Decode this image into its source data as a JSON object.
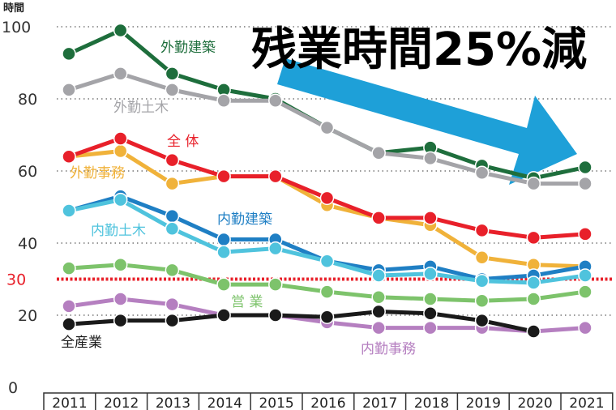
{
  "chart_data": {
    "type": "line",
    "title": "残業時間25%減",
    "ylabel": "時間",
    "xlabel": "",
    "ylim": [
      0,
      100
    ],
    "yticks": [
      0,
      20,
      40,
      60,
      80,
      100
    ],
    "reference_line": {
      "value": 30,
      "label": "30",
      "color": "#e8202a"
    },
    "grid": "horizontal dotted",
    "x": [
      "2011",
      "2012",
      "2013",
      "2014",
      "2015",
      "2016",
      "2017",
      "2018",
      "2019",
      "2020",
      "2021"
    ],
    "series": [
      {
        "name": "外勤建築",
        "color": "#1e6e3c",
        "values": [
          92.5,
          99,
          87,
          82.5,
          80,
          72,
          65,
          66.5,
          61.5,
          58,
          61
        ]
      },
      {
        "name": "外勤土木",
        "color": "#a4a4a8",
        "values": [
          82.5,
          87,
          82.5,
          79.5,
          79.5,
          72,
          65,
          63.5,
          59.5,
          56.5,
          56.5
        ]
      },
      {
        "name": "外勤事務",
        "color": "#f0b23a",
        "values": [
          64,
          65.5,
          56.5,
          58.5,
          58.5,
          50.5,
          47,
          45,
          36,
          34,
          33.5
        ]
      },
      {
        "name": "全 体",
        "color": "#e8202a",
        "values": [
          64,
          69,
          63,
          58.5,
          58.5,
          52.5,
          47,
          47,
          43.5,
          41.5,
          42.5
        ]
      },
      {
        "name": "内勤建築",
        "color": "#1f7fc4",
        "values": [
          49,
          53,
          47.5,
          41,
          41,
          35,
          32.5,
          33.5,
          30,
          31,
          33.5
        ]
      },
      {
        "name": "内勤土木",
        "color": "#4fc3dd",
        "values": [
          49,
          52,
          44,
          37.5,
          38.5,
          35,
          31,
          31.5,
          29.5,
          29,
          31
        ]
      },
      {
        "name": "営 業",
        "color": "#7dc36b",
        "values": [
          33,
          34,
          32.5,
          28.5,
          28.5,
          26.5,
          25,
          24.5,
          24,
          24.5,
          26.5
        ]
      },
      {
        "name": "内勤事務",
        "color": "#b57fc0",
        "values": [
          22.5,
          24.5,
          23,
          20,
          20,
          18,
          16.5,
          16.5,
          16.5,
          15.5,
          16.5
        ]
      },
      {
        "name": "全産業",
        "color": "#1a1a1a",
        "values": [
          17.5,
          18.5,
          18.5,
          20,
          20,
          19.5,
          21,
          20.5,
          18.5,
          15.5,
          null
        ]
      }
    ]
  },
  "annotation": {
    "arrow_color": "#1ea0d8"
  }
}
